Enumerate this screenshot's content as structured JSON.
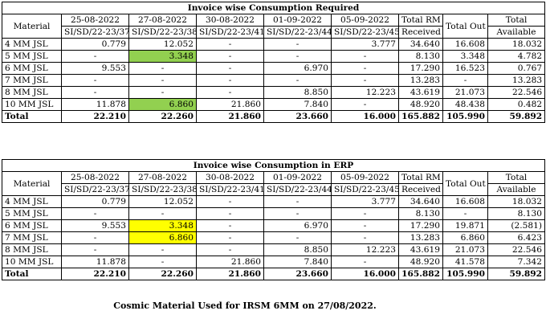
{
  "columns": {
    "material": "Material",
    "dates": [
      "25-08-2022",
      "27-08-2022",
      "30-08-2022",
      "01-09-2022",
      "05-09-2022"
    ],
    "invoices": [
      "SI/SD/22-23/37",
      "SI/SD/22-23/38",
      "SI/SD/22-23/41",
      "SI/SD/22-23/44",
      "SI/SD/22-23/45"
    ],
    "total_rm": [
      "Total RM",
      "Received"
    ],
    "total_out": "Total Out",
    "total_available": [
      "Total",
      "Available"
    ]
  },
  "tables": [
    {
      "title": "Invoice wise Consumption Required",
      "highlight": "#92d050",
      "rows": [
        {
          "material": "4 MM JSL",
          "vals": [
            "0.779",
            "12.052",
            "-",
            "-",
            "3.777"
          ],
          "rm": "34.640",
          "out": "16.608",
          "avail": "18.032",
          "hl": []
        },
        {
          "material": "5 MM JSL",
          "vals": [
            "-",
            "3.348",
            "-",
            "-",
            "-"
          ],
          "rm": "8.130",
          "out": "3.348",
          "avail": "4.782",
          "hl": [
            1
          ]
        },
        {
          "material": "6 MM JSL",
          "vals": [
            "9.553",
            "-",
            "-",
            "6.970",
            "-"
          ],
          "rm": "17.290",
          "out": "16.523",
          "avail": "0.767",
          "hl": []
        },
        {
          "material": "7 MM JSL",
          "vals": [
            "-",
            "-",
            "-",
            "-",
            "-"
          ],
          "rm": "13.283",
          "out": "-",
          "avail": "13.283",
          "hl": []
        },
        {
          "material": "8 MM JSL",
          "vals": [
            "-",
            "-",
            "-",
            "8.850",
            "12.223"
          ],
          "rm": "43.619",
          "out": "21.073",
          "avail": "22.546",
          "hl": []
        },
        {
          "material": "10 MM JSL",
          "vals": [
            "11.878",
            "6.860",
            "21.860",
            "7.840",
            "-"
          ],
          "rm": "48.920",
          "out": "48.438",
          "avail": "0.482",
          "hl": [
            1
          ]
        }
      ],
      "total": {
        "label": "Total",
        "vals": [
          "22.210",
          "22.260",
          "21.860",
          "23.660",
          "16.000"
        ],
        "rm": "165.882",
        "out": "105.990",
        "avail": "59.892"
      }
    },
    {
      "title": "Invoice wise Consumption in ERP",
      "highlight": "#ffff00",
      "rows": [
        {
          "material": "4 MM JSL",
          "vals": [
            "0.779",
            "12.052",
            "-",
            "-",
            "3.777"
          ],
          "rm": "34.640",
          "out": "16.608",
          "avail": "18.032",
          "hl": []
        },
        {
          "material": "5 MM JSL",
          "vals": [
            "-",
            "-",
            "-",
            "-",
            "-"
          ],
          "rm": "8.130",
          "out": "-",
          "avail": "8.130",
          "hl": []
        },
        {
          "material": "6 MM JSL",
          "vals": [
            "9.553",
            "3.348",
            "-",
            "6.970",
            "-"
          ],
          "rm": "17.290",
          "out": "19.871",
          "avail": "(2.581)",
          "hl": [
            1
          ]
        },
        {
          "material": "7 MM JSL",
          "vals": [
            "-",
            "6.860",
            "-",
            "-",
            "-"
          ],
          "rm": "13.283",
          "out": "6.860",
          "avail": "6.423",
          "hl": [
            1
          ]
        },
        {
          "material": "8 MM JSL",
          "vals": [
            "-",
            "-",
            "-",
            "8.850",
            "12.223"
          ],
          "rm": "43.619",
          "out": "21.073",
          "avail": "22.546",
          "hl": []
        },
        {
          "material": "10 MM JSL",
          "vals": [
            "11.878",
            "-",
            "21.860",
            "7.840",
            "-"
          ],
          "rm": "48.920",
          "out": "41.578",
          "avail": "7.342",
          "hl": []
        }
      ],
      "total": {
        "label": "Total",
        "vals": [
          "22.210",
          "22.260",
          "21.860",
          "23.660",
          "16.000"
        ],
        "rm": "165.882",
        "out": "105.990",
        "avail": "59.892"
      }
    }
  ],
  "footnote": "Cosmic Material Used for IRSM 6MM on 27/08/2022."
}
